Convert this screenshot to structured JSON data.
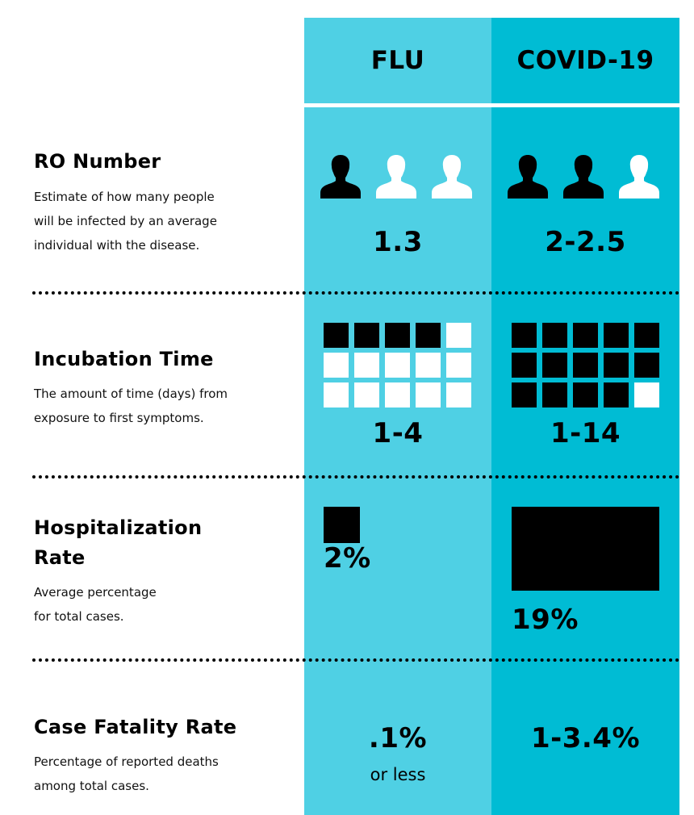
{
  "columns": {
    "flu": "FLU",
    "covid": "COVID-19"
  },
  "rows": {
    "r0": {
      "title": "RO Number",
      "desc_lines": [
        "Estimate of how many people",
        "will be infected by an average",
        "individual with the disease."
      ],
      "flu_value": "1.3",
      "covid_value": "2-2.5",
      "flu_people_filled": [
        true,
        false,
        false
      ],
      "covid_people_filled": [
        true,
        true,
        false
      ],
      "person_icon": "person-icon"
    },
    "incubation": {
      "title": "Incubation Time",
      "desc_lines": [
        "The amount of time (days) from",
        "exposure to first symptoms."
      ],
      "flu_value": "1-4",
      "covid_value": "1-14",
      "flu_days_filled": 4,
      "covid_days_filled": 14,
      "grid_total": 15
    },
    "hospitalization": {
      "title_lines": [
        "Hospitalization",
        "Rate"
      ],
      "desc_lines": [
        "Average percentage",
        "for total cases."
      ],
      "flu_value": "2%",
      "covid_value": "19%",
      "flu_percent": 2,
      "covid_percent": 19
    },
    "fatality": {
      "title": "Case Fatality Rate",
      "desc_lines": [
        "Percentage of reported deaths",
        "among total cases."
      ],
      "flu_value": ".1%",
      "flu_sub": "or less",
      "covid_value": "1-3.4%"
    }
  },
  "colors": {
    "flu": "#4fd0e4",
    "covid": "#00bcd4",
    "filled": "#000000",
    "empty": "#ffffff"
  }
}
